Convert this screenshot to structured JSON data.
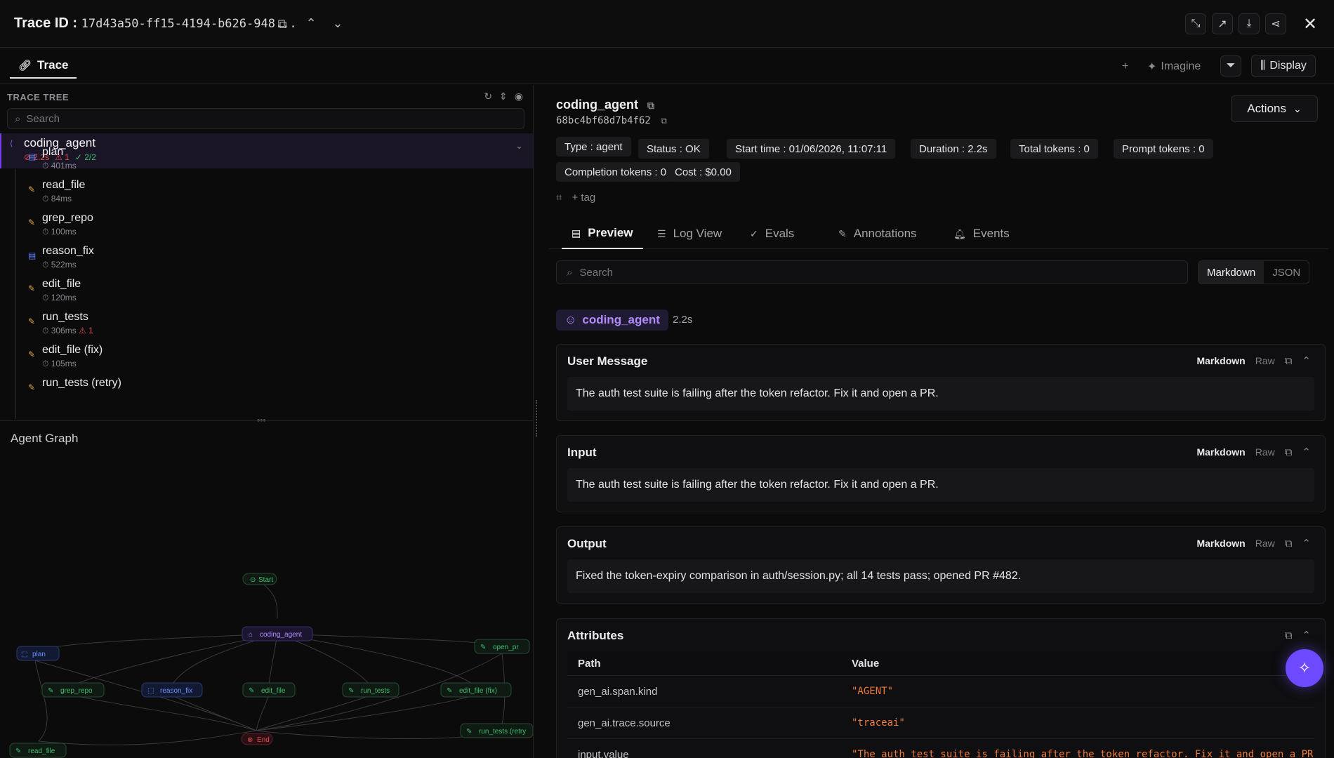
{
  "header": {
    "trace_label": "Trace ID :",
    "trace_id": "17d43a50-ff15-4194-b626-948..."
  },
  "tabs": {
    "trace": "Trace",
    "imagine": "Imagine",
    "display": "Display"
  },
  "tree": {
    "header": "TRACE TREE",
    "search_placeholder": "Search",
    "root": {
      "name": "coding_agent",
      "duration": "2.2s",
      "warnings": "1",
      "checks": "2/2"
    },
    "items": [
      {
        "name": "plan",
        "duration": "401ms",
        "kind": "llm"
      },
      {
        "name": "read_file",
        "duration": "84ms",
        "kind": "tool"
      },
      {
        "name": "grep_repo",
        "duration": "100ms",
        "kind": "tool"
      },
      {
        "name": "reason_fix",
        "duration": "522ms",
        "kind": "llm"
      },
      {
        "name": "edit_file",
        "duration": "120ms",
        "kind": "tool"
      },
      {
        "name": "run_tests",
        "duration": "306ms",
        "warn": "1",
        "kind": "tool"
      },
      {
        "name": "edit_file (fix)",
        "duration": "105ms",
        "kind": "tool"
      },
      {
        "name": "run_tests (retry)",
        "duration": "",
        "kind": "tool"
      }
    ]
  },
  "graph": {
    "title": "Agent Graph",
    "nodes": {
      "start": "Start",
      "coding_agent": "coding_agent",
      "plan": "plan",
      "open_pr": "open_pr",
      "grep_repo": "grep_repo",
      "reason_fix": "reason_fix",
      "edit_file": "edit_file",
      "run_tests": "run_tests",
      "edit_file_fix": "edit_file (fix)",
      "run_tests_retry": "run_tests (retry",
      "read_file": "read_file",
      "end": "End"
    }
  },
  "span": {
    "name": "coding_agent",
    "id": "68bc4bf68d7b4f62",
    "actions_label": "Actions",
    "pills": [
      "Type : agent",
      "Status : OK",
      "Start time : 01/06/2026, 11:07:11",
      "Duration : 2.2s",
      "Total tokens : 0",
      "Prompt tokens : 0",
      "Completion tokens : 0",
      "Cost : $0.00"
    ],
    "tag_label": "+ tag"
  },
  "detail_tabs": [
    "Preview",
    "Log View",
    "Evals",
    "Annotations",
    "Events"
  ],
  "preview": {
    "search_placeholder": "Search",
    "mode_on": "Markdown",
    "mode_off": "JSON",
    "agent_chip": "coding_agent",
    "agent_duration": "2.2s",
    "sections": [
      {
        "title": "User Message",
        "body": "The auth test suite is failing after the token refactor. Fix it and open a PR."
      },
      {
        "title": "Input",
        "body": "The auth test suite is failing after the token refactor. Fix it and open a PR."
      },
      {
        "title": "Output",
        "body": "Fixed the token-expiry comparison in auth/session.py; all 14 tests pass; opened PR #482."
      }
    ],
    "markdown_label": "Markdown",
    "raw_label": "Raw",
    "attributes": {
      "title": "Attributes",
      "col_path": "Path",
      "col_value": "Value",
      "rows": [
        {
          "path": "gen_ai.span.kind",
          "value": "\"AGENT\""
        },
        {
          "path": "gen_ai.trace.source",
          "value": "\"traceai\""
        },
        {
          "path": "input.value",
          "value": "\"The auth test suite is failing after the token refactor. Fix it and open a PR.\""
        }
      ]
    }
  },
  "colors": {
    "accent": "#7c3aed",
    "tool": "#e0a44a",
    "llm": "#5b7cf7",
    "ok": "#3fbf6f",
    "error": "#e5484d",
    "value": "#f07b3a"
  }
}
